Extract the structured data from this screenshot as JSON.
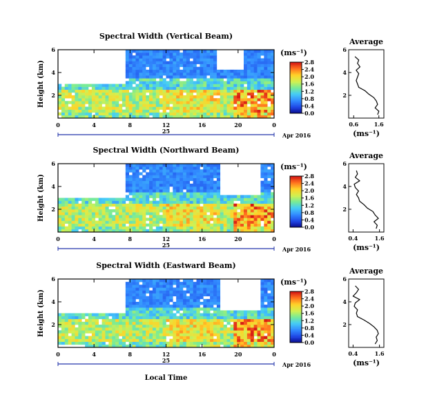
{
  "figure": {
    "local_time_label": "Local Time",
    "average_title": "Average",
    "height_label": "Height (km)"
  },
  "chart_data": [
    {
      "type": "heatmap",
      "title": "Spectral Width (Vertical Beam)",
      "xlabel": "",
      "ylabel": "Height (km)",
      "x_ticks": [
        "0",
        "4",
        "8",
        "12",
        "16",
        "20",
        "0"
      ],
      "xlim_hours": [
        0,
        24
      ],
      "y_ticks": [
        "2",
        "4",
        "6"
      ],
      "ylim_km": [
        0,
        6
      ],
      "date_label": "25",
      "month_label": "Apr 2016",
      "colorbar": {
        "unit": "(ms⁻¹)",
        "ticks": [
          "0.0",
          "0.4",
          "0.8",
          "1.2",
          "1.6",
          "2.0",
          "2.4",
          "2.8"
        ],
        "range": [
          0,
          2.8
        ]
      },
      "average_profile": {
        "title": "Average",
        "xlabel": "(ms⁻¹)",
        "x_ticks": [
          "0.6",
          "1.6"
        ],
        "y_ticks": [
          "2",
          "4",
          "6"
        ],
        "ylim_km": [
          0,
          6
        ],
        "x_km": [
          0.3,
          0.6,
          0.9,
          1.2,
          1.5,
          1.8,
          2.1,
          2.4,
          2.7,
          3.0,
          3.3,
          3.6,
          3.9,
          4.2,
          4.5,
          4.8,
          5.1,
          5.4
        ],
        "values": [
          1.55,
          1.6,
          1.45,
          1.55,
          1.5,
          1.4,
          1.2,
          1.05,
          0.8,
          0.75,
          0.7,
          0.75,
          0.8,
          0.7,
          0.85,
          0.75,
          0.8,
          0.65
        ]
      }
    },
    {
      "type": "heatmap",
      "title": "Spectral Width (Northward Beam)",
      "xlabel": "",
      "ylabel": "Height (km)",
      "x_ticks": [
        "0",
        "4",
        "8",
        "12",
        "16",
        "20",
        "0"
      ],
      "xlim_hours": [
        0,
        24
      ],
      "y_ticks": [
        "2",
        "4",
        "6"
      ],
      "ylim_km": [
        0,
        6
      ],
      "date_label": "25",
      "month_label": "Apr 2016",
      "colorbar": {
        "unit": "(ms⁻¹)",
        "ticks": [
          "0.0",
          "0.4",
          "0.8",
          "1.2",
          "1.6",
          "2.0",
          "2.4",
          "2.8"
        ],
        "range": [
          0,
          2.8
        ]
      },
      "average_profile": {
        "title": "Average",
        "xlabel": "(ms⁻¹)",
        "x_ticks": [
          "0.4",
          "1.6"
        ],
        "y_ticks": [
          "2",
          "4",
          "6"
        ],
        "ylim_km": [
          0,
          6
        ],
        "x_km": [
          0.3,
          0.6,
          0.9,
          1.2,
          1.5,
          1.8,
          2.1,
          2.4,
          2.7,
          3.0,
          3.3,
          3.6,
          3.9,
          4.2,
          4.5,
          4.8,
          5.1,
          5.4
        ],
        "values": [
          1.45,
          1.5,
          1.35,
          1.55,
          1.4,
          1.3,
          1.05,
          0.9,
          0.7,
          0.65,
          0.55,
          0.65,
          0.5,
          0.45,
          0.7,
          0.5,
          0.6,
          0.55
        ]
      }
    },
    {
      "type": "heatmap",
      "title": "Spectral Width (Eastward Beam)",
      "xlabel": "Local Time",
      "ylabel": "Height (km)",
      "x_ticks": [
        "0",
        "4",
        "8",
        "12",
        "16",
        "20",
        "0"
      ],
      "xlim_hours": [
        0,
        24
      ],
      "y_ticks": [
        "2",
        "4",
        "6"
      ],
      "ylim_km": [
        0,
        6
      ],
      "date_label": "25",
      "month_label": "Apr 2016",
      "colorbar": {
        "unit": "(ms⁻¹)",
        "ticks": [
          "0.0",
          "0.4",
          "0.8",
          "1.2",
          "1.6",
          "2.0",
          "2.4",
          "2.8"
        ],
        "range": [
          0,
          2.8
        ]
      },
      "average_profile": {
        "title": "Average",
        "xlabel": "(ms⁻¹)",
        "x_ticks": [
          "0.4",
          "1.6"
        ],
        "y_ticks": [
          "2",
          "4",
          "6"
        ],
        "ylim_km": [
          0,
          6
        ],
        "x_km": [
          0.3,
          0.6,
          0.9,
          1.2,
          1.5,
          1.8,
          2.1,
          2.4,
          2.7,
          3.0,
          3.3,
          3.6,
          3.9,
          4.2,
          4.5,
          4.8,
          5.1,
          5.4
        ],
        "values": [
          1.4,
          1.5,
          1.45,
          1.55,
          1.5,
          1.35,
          1.15,
          0.9,
          0.6,
          0.55,
          0.6,
          0.45,
          0.5,
          0.7,
          0.4,
          0.55,
          0.65,
          0.5
        ]
      }
    }
  ]
}
